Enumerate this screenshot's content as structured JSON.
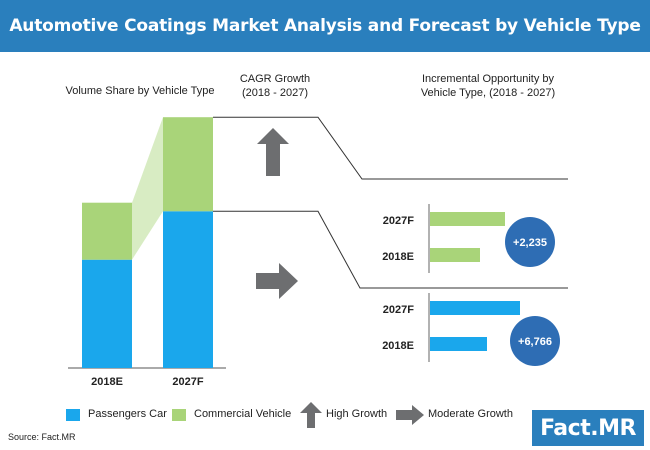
{
  "header": {
    "title": "Automotive Coatings Market Analysis and Forecast by Vehicle Type"
  },
  "labels": {
    "volume_share": "Volume Share by Vehicle Type",
    "cagr_line1": "CAGR Growth",
    "cagr_line2": "(2018 - 2027)",
    "incr_line1": "Incremental Opportunity by",
    "incr_line2": "Vehicle Type, (2018 - 2027)"
  },
  "legend": {
    "passengers": "Passengers Car",
    "commercial": "Commercial Vehicle",
    "high": "High Growth",
    "moderate": "Moderate Growth"
  },
  "colors": {
    "passengers": "#1aa7ec",
    "commercial": "#a9d479",
    "arrow": "#6d6e70",
    "bubble": "#2e6db4",
    "banner": "#2a7fbd"
  },
  "footer": {
    "source": "Source: Fact.MR",
    "logo_left": "Fact",
    "logo_dot": ".",
    "logo_right": "MR"
  },
  "chart_data": [
    {
      "type": "bar",
      "stacked": true,
      "title": "Volume Share by Vehicle Type",
      "categories": [
        "2018E",
        "2027F"
      ],
      "series": [
        {
          "name": "Passengers Car",
          "values": [
            38,
            55
          ]
        },
        {
          "name": "Commercial Vehicle",
          "values": [
            20,
            33
          ]
        }
      ]
    },
    {
      "type": "bar",
      "orientation": "horizontal",
      "title": "Incremental Opportunity by Vehicle Type, (2018 - 2027)",
      "segment": "Commercial Vehicle",
      "categories": [
        "2027F",
        "2018E"
      ],
      "values": [
        75,
        50
      ],
      "incremental_opportunity": "+2,235",
      "cagr_growth": "High Growth"
    },
    {
      "type": "bar",
      "orientation": "horizontal",
      "title": "Incremental Opportunity by Vehicle Type, (2018 - 2027)",
      "segment": "Passengers Car",
      "categories": [
        "2027F",
        "2018E"
      ],
      "values": [
        90,
        57
      ],
      "incremental_opportunity": "+6,766",
      "cagr_growth": "Moderate Growth"
    }
  ]
}
